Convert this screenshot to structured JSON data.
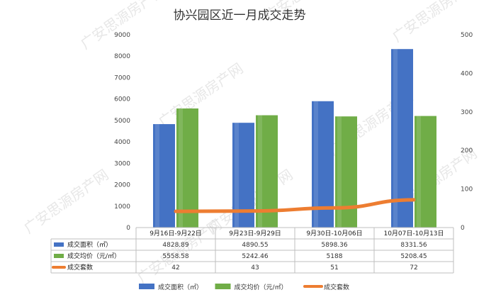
{
  "chart_data": {
    "type": "bar",
    "title": "协兴园区近一月成交走势",
    "categories": [
      "9月16日-9月22日",
      "9月23日-9月29日",
      "9月30日-10月06日",
      "10月07日-10月13日"
    ],
    "series": [
      {
        "name": "成交面积（㎡）",
        "type": "bar",
        "axis": "left",
        "color": "#4472C4",
        "values": [
          4828.89,
          4890.55,
          5898.36,
          8331.56
        ]
      },
      {
        "name": "成交均价（元/㎡）",
        "type": "bar",
        "axis": "left",
        "color": "#70AD47",
        "values": [
          5558.58,
          5242.46,
          5188,
          5208.45
        ]
      },
      {
        "name": "成交套数",
        "type": "line",
        "axis": "right",
        "color": "#ED7D31",
        "values": [
          42,
          43,
          51,
          72
        ]
      }
    ],
    "table": {
      "rows": [
        {
          "label": "成交面积（㎡）",
          "cells": [
            "4828.89",
            "4890.55",
            "5898.36",
            "8331.56"
          ]
        },
        {
          "label": "成交均价（元/㎡）",
          "cells": [
            "5558.58",
            "5242.46",
            "5188",
            "5208.45"
          ]
        },
        {
          "label": "成交套数",
          "cells": [
            "42",
            "43",
            "51",
            "72"
          ]
        }
      ]
    },
    "left_axis": {
      "ylim": [
        0,
        9000
      ],
      "ticks": [
        "0",
        "1000",
        "2000",
        "3000",
        "4000",
        "5000",
        "6000",
        "7000",
        "8000",
        "9000"
      ]
    },
    "right_axis": {
      "ylim": [
        0,
        500
      ],
      "ticks": [
        "0",
        "100",
        "200",
        "300",
        "400",
        "500"
      ]
    },
    "legend_position": "bottom",
    "grid": false
  },
  "watermark": {
    "text": "广安思源房产网"
  }
}
